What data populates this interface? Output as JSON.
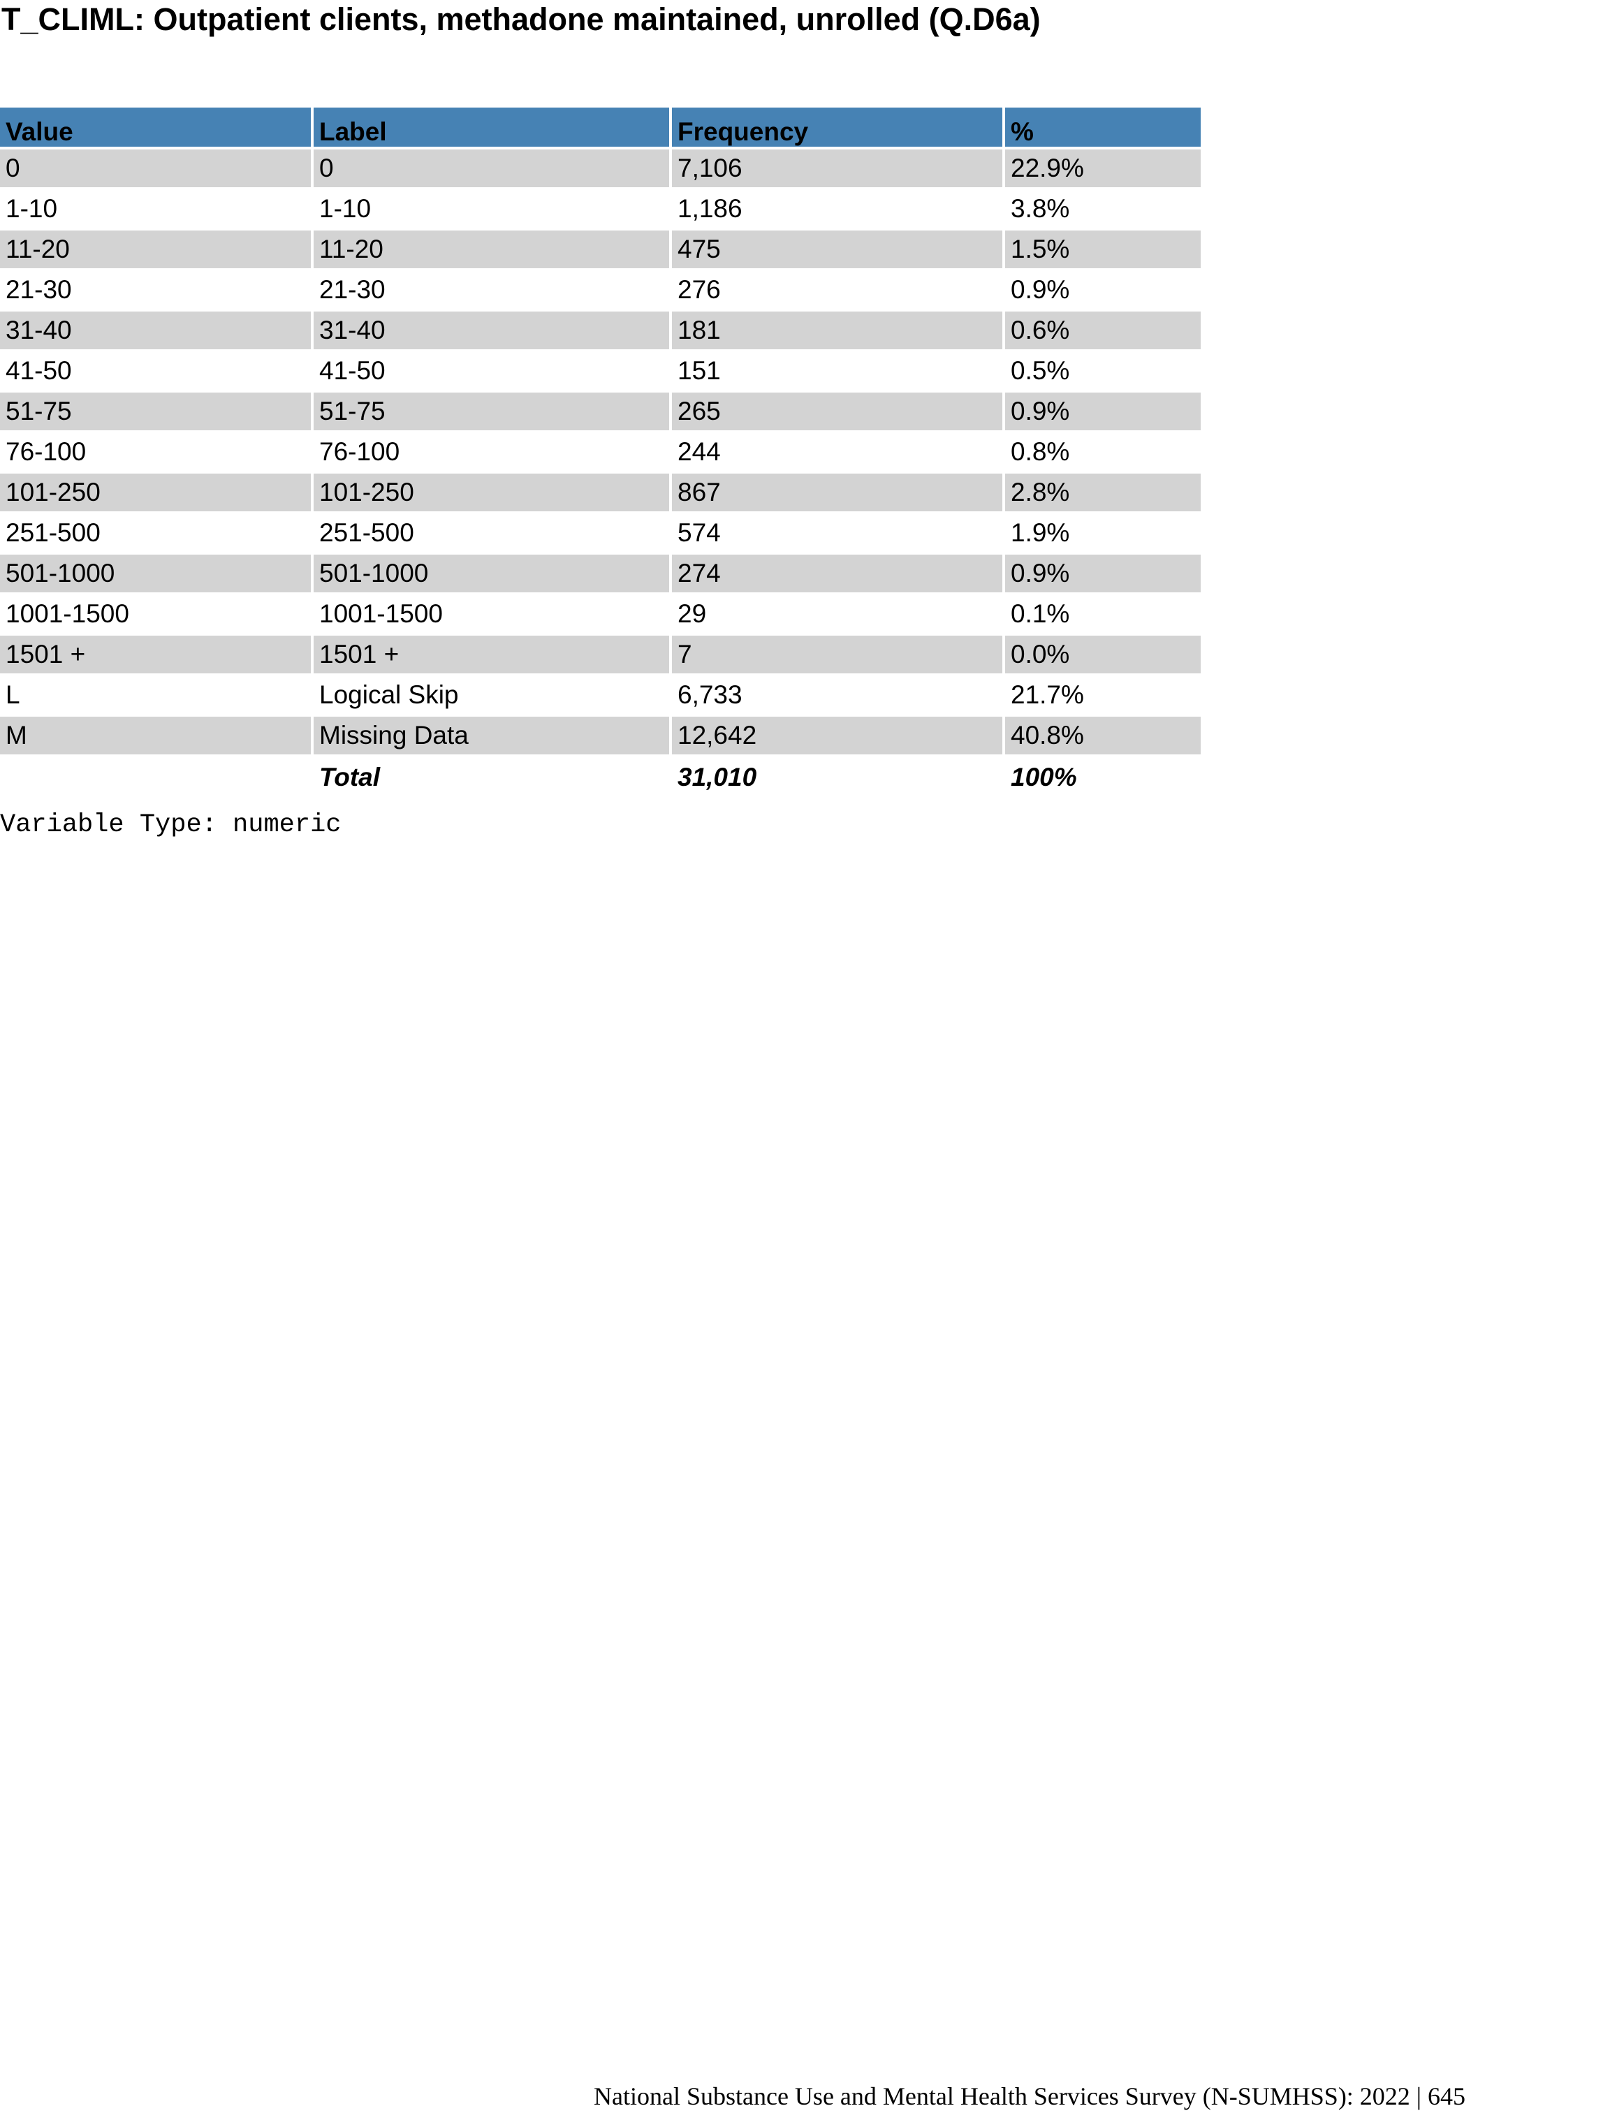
{
  "title": "T_CLIML: Outpatient clients, methadone maintained, unrolled (Q.D6a)",
  "table": {
    "headers": {
      "value": "Value",
      "label": "Label",
      "frequency": "Frequency",
      "percent": "%"
    },
    "rows": [
      {
        "value": "0",
        "label": "0",
        "frequency": "7,106",
        "percent": "22.9%"
      },
      {
        "value": "1-10",
        "label": "1-10",
        "frequency": "1,186",
        "percent": "3.8%"
      },
      {
        "value": "11-20",
        "label": "11-20",
        "frequency": "475",
        "percent": "1.5%"
      },
      {
        "value": "21-30",
        "label": "21-30",
        "frequency": "276",
        "percent": "0.9%"
      },
      {
        "value": "31-40",
        "label": "31-40",
        "frequency": "181",
        "percent": "0.6%"
      },
      {
        "value": "41-50",
        "label": "41-50",
        "frequency": "151",
        "percent": "0.5%"
      },
      {
        "value": "51-75",
        "label": "51-75",
        "frequency": "265",
        "percent": "0.9%"
      },
      {
        "value": "76-100",
        "label": "76-100",
        "frequency": "244",
        "percent": "0.8%"
      },
      {
        "value": "101-250",
        "label": "101-250",
        "frequency": "867",
        "percent": "2.8%"
      },
      {
        "value": "251-500",
        "label": "251-500",
        "frequency": "574",
        "percent": "1.9%"
      },
      {
        "value": "501-1000",
        "label": "501-1000",
        "frequency": "274",
        "percent": "0.9%"
      },
      {
        "value": "1001-1500",
        "label": "1001-1500",
        "frequency": "29",
        "percent": "0.1%"
      },
      {
        "value": "1501 +",
        "label": "1501 +",
        "frequency": "7",
        "percent": "0.0%"
      },
      {
        "value": "L",
        "label": "Logical Skip",
        "frequency": "6,733",
        "percent": "21.7%"
      },
      {
        "value": "M",
        "label": "Missing Data",
        "frequency": "12,642",
        "percent": "40.8%"
      }
    ],
    "total": {
      "label": "Total",
      "frequency": "31,010",
      "percent": "100%"
    }
  },
  "variable_type": "Variable Type: numeric",
  "footer": "National Substance Use and Mental Health Services Survey (N-SUMHSS): 2022 | 645",
  "colors": {
    "header_bg": "#4682b4",
    "shaded_row_bg": "#d3d3d3"
  }
}
